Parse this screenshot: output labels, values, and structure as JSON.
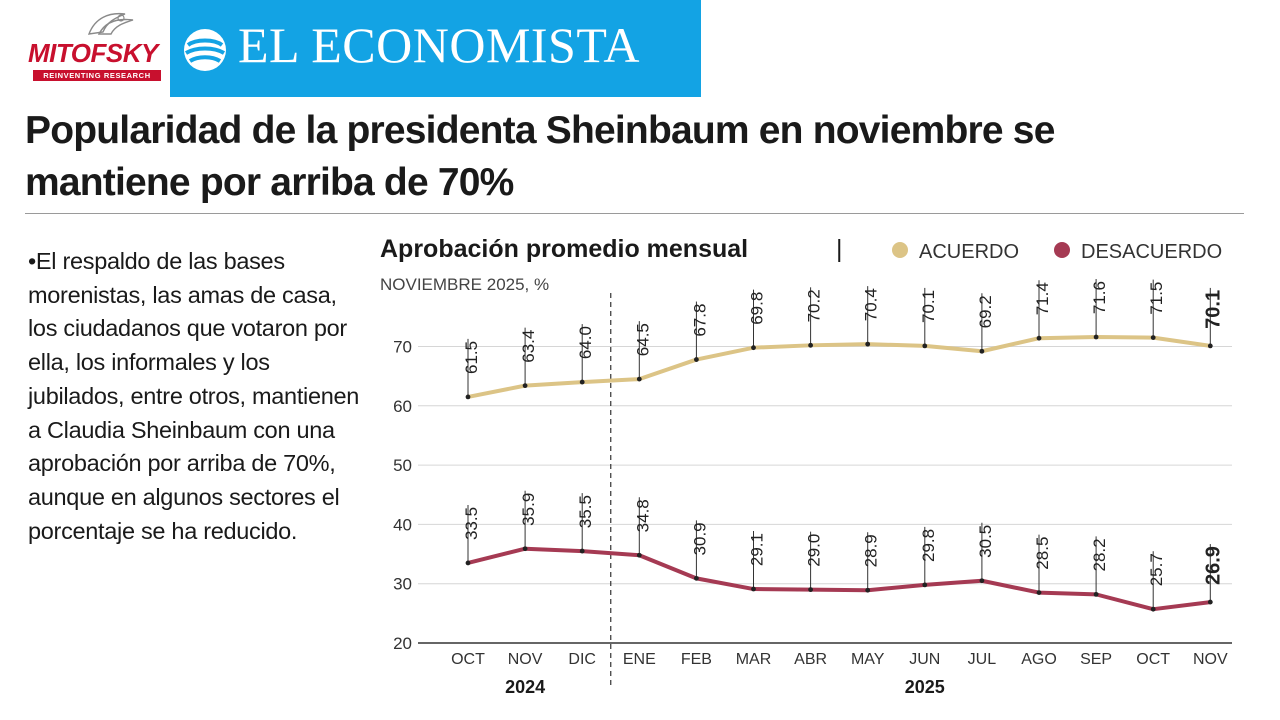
{
  "brand": {
    "mitofsky": "MITOFSKY",
    "mitofsky_tagline": "REINVENTING RESEARCH",
    "publication": "EL ECONOMISTA",
    "accent_red": "#c8102e",
    "accent_blue": "#13a3e4"
  },
  "headline": "Popularidad de la presidenta Sheinbaum en noviembre se mantiene por arriba de 70%",
  "body_text": "•El respaldo de las bases morenistas, las amas de casa, los ciudadanos que votaron por ella, los informales y los jubilados, entre otros, mantienen a Claudia Sheinbaum con una aprobación por arriba de 70%, aunque en algunos sectores el porcentaje se ha reducido.",
  "chart_data": {
    "type": "line",
    "title": "Aprobación promedio mensual",
    "title_separator": "|",
    "subtitle": "NOVIEMBRE 2025, %",
    "categories": [
      "OCT",
      "NOV",
      "DIC",
      "ENE",
      "FEB",
      "MAR",
      "ABR",
      "MAY",
      "JUN",
      "JUL",
      "AGO",
      "SEP",
      "OCT",
      "NOV"
    ],
    "year_groups": [
      {
        "label": "2024",
        "from": 0,
        "to": 2
      },
      {
        "label": "2025",
        "from": 3,
        "to": 13
      }
    ],
    "series": [
      {
        "name": "ACUERDO",
        "color": "#dcc486",
        "values": [
          61.5,
          63.4,
          64.0,
          64.5,
          67.8,
          69.8,
          70.2,
          70.4,
          70.1,
          69.2,
          71.4,
          71.6,
          71.5,
          70.1
        ]
      },
      {
        "name": "DESACUERDO",
        "color": "#a53a53",
        "values": [
          33.5,
          35.9,
          35.5,
          34.8,
          30.9,
          29.1,
          29.0,
          28.9,
          29.8,
          30.5,
          28.5,
          28.2,
          25.7,
          26.9
        ]
      }
    ],
    "ylim": [
      20,
      75
    ],
    "yticks": [
      20,
      30,
      40,
      50,
      60,
      70
    ],
    "grid": true,
    "legend_position": "top-right",
    "highlight_last_label": true,
    "divider_between": "DIC-ENE"
  }
}
